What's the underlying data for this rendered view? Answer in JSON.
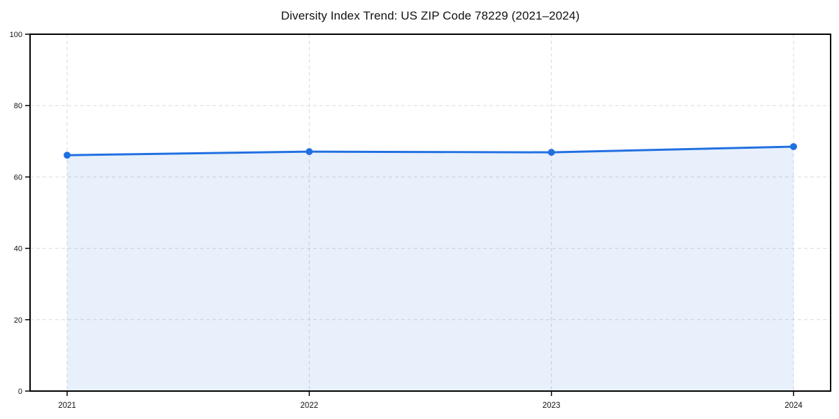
{
  "chart_data": {
    "type": "line",
    "title": "Diversity Index Trend: US ZIP Code 78229 (2021–2024)",
    "xlabel": "",
    "ylabel": "",
    "x": [
      "2021",
      "2022",
      "2023",
      "2024"
    ],
    "series": [
      {
        "name": "Diversity Index",
        "values": [
          66.1,
          67.1,
          66.9,
          68.5
        ]
      }
    ],
    "ylim": [
      0,
      100
    ],
    "yticks": [
      0,
      20,
      40,
      60,
      80,
      100
    ],
    "grid": "dashed",
    "legend": "none",
    "area_fill": true,
    "marker": "circle",
    "colors": {
      "line": "#2170e2",
      "fill": "rgba(33,112,226,0.10)",
      "grid": "#d9d9d9",
      "spine": "#000000",
      "text": "#111111",
      "background": "#ffffff"
    }
  }
}
